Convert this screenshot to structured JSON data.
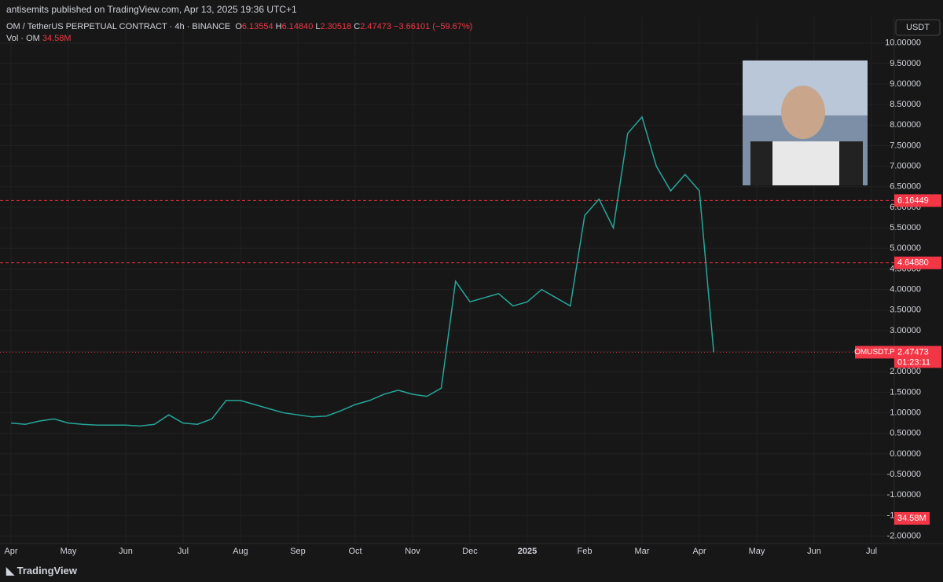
{
  "header": {
    "publisher": "antisemits published on TradingView.com, Apr 13, 2025 19:36 UTC+1"
  },
  "legend": {
    "symbol": "OM / TetherUS PERPETUAL CONTRACT · 4h · BINANCE",
    "ohlc": [
      {
        "key": "O",
        "value": "6.13554"
      },
      {
        "key": "H",
        "value": "6.14840"
      },
      {
        "key": "L",
        "value": "2.30518"
      },
      {
        "key": "C",
        "value": "2.47473"
      }
    ],
    "change": "−3.66101 (−59.67%)",
    "volume_label": "Vol · OM",
    "volume_value": "34.58M"
  },
  "currency": "USDT",
  "footer": {
    "brand": "TradingView"
  },
  "chart_data": {
    "type": "line",
    "categories": [
      "Apr",
      null,
      null,
      null,
      "May",
      null,
      null,
      null,
      "Jun",
      null,
      null,
      null,
      "Jul",
      null,
      null,
      null,
      "Aug",
      null,
      null,
      null,
      "Sep",
      null,
      null,
      null,
      "Oct",
      null,
      null,
      null,
      "Nov",
      null,
      null,
      null,
      "Dec",
      null,
      null,
      null,
      "2025",
      null,
      null,
      null,
      "Feb",
      null,
      null,
      null,
      "Mar",
      null,
      null,
      null,
      "Apr",
      null,
      null,
      null,
      "May",
      null,
      null,
      null,
      "Jun",
      null,
      null,
      null,
      "Jul",
      null,
      null,
      null
    ],
    "series": [
      {
        "name": "OMUSDT.P",
        "color": "#26a69a",
        "values": [
          0.75,
          0.72,
          0.8,
          0.85,
          0.75,
          0.72,
          0.7,
          0.7,
          0.7,
          0.68,
          0.72,
          0.95,
          0.75,
          0.72,
          0.85,
          1.3,
          1.3,
          1.2,
          1.1,
          1.0,
          0.95,
          0.9,
          0.92,
          1.05,
          1.2,
          1.3,
          1.45,
          1.55,
          1.45,
          1.4,
          1.6,
          4.2,
          3.7,
          3.8,
          3.9,
          3.6,
          3.7,
          4.0,
          3.8,
          3.6,
          5.8,
          6.2,
          5.5,
          7.8,
          8.2,
          7.0,
          6.4,
          6.8,
          6.4,
          2.47,
          null,
          null,
          null,
          null,
          null,
          null,
          null,
          null,
          null,
          null,
          null,
          null,
          null,
          null
        ]
      }
    ],
    "ylim": [
      -2.2,
      10.3
    ],
    "yticks": [
      {
        "value": -2,
        "label": "-2.00000"
      },
      {
        "value": -1.5,
        "label": "-1.50000"
      },
      {
        "value": -1,
        "label": "-1.00000"
      },
      {
        "value": -0.5,
        "label": "-0.50000"
      },
      {
        "value": 0,
        "label": "0.00000"
      },
      {
        "value": 0.5,
        "label": "0.50000"
      },
      {
        "value": 1,
        "label": "1.00000"
      },
      {
        "value": 1.5,
        "label": "1.50000"
      },
      {
        "value": 2,
        "label": "2.00000"
      },
      {
        "value": 2.5,
        "label": "2.50000"
      },
      {
        "value": 3,
        "label": "3.00000"
      },
      {
        "value": 3.5,
        "label": "3.50000"
      },
      {
        "value": 4,
        "label": "4.00000"
      },
      {
        "value": 4.5,
        "label": "4.50000"
      },
      {
        "value": 5,
        "label": "5.00000"
      },
      {
        "value": 5.5,
        "label": "5.50000"
      },
      {
        "value": 6,
        "label": "6.00000"
      },
      {
        "value": 6.5,
        "label": "6.50000"
      },
      {
        "value": 7,
        "label": "7.00000"
      },
      {
        "value": 7.5,
        "label": "7.50000"
      },
      {
        "value": 8,
        "label": "8.00000"
      },
      {
        "value": 8.5,
        "label": "8.50000"
      },
      {
        "value": 9,
        "label": "9.00000"
      },
      {
        "value": 9.5,
        "label": "9.50000"
      },
      {
        "value": 10,
        "label": "10.00000"
      }
    ],
    "hlines": [
      {
        "value": 6.16449,
        "label": "6.16449",
        "color": "#f23645"
      },
      {
        "value": 4.6488,
        "label": "4.64880",
        "color": "#f23645"
      }
    ],
    "last_price": {
      "symbol": "OMUSDT.P",
      "value": 2.47473,
      "label": "2.47473",
      "countdown": "01:23:11",
      "color": "#f23645"
    },
    "grid": true
  }
}
